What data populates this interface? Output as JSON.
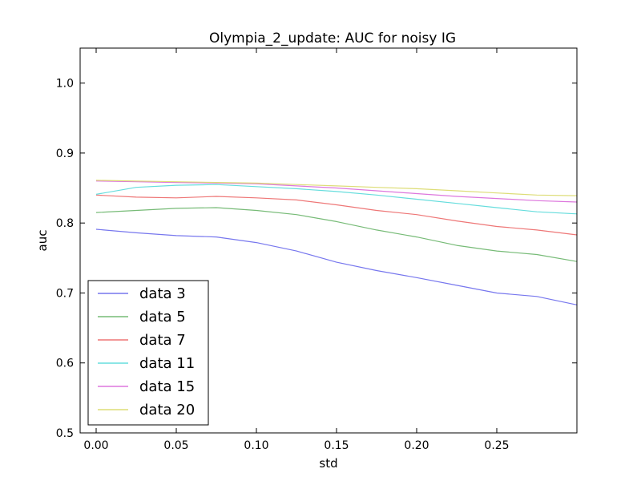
{
  "chart_data": {
    "type": "line",
    "title": "Olympia_2_update: AUC for noisy IG",
    "xlabel": "std",
    "ylabel": "auc",
    "xlim": [
      -0.01,
      0.3
    ],
    "ylim": [
      0.5,
      1.05
    ],
    "xticks": [
      0.0,
      0.05,
      0.1,
      0.15,
      0.2,
      0.25
    ],
    "xtick_labels": [
      "0.00",
      "0.05",
      "0.10",
      "0.15",
      "0.20",
      "0.25"
    ],
    "yticks": [
      0.5,
      0.6,
      0.7,
      0.8,
      0.9,
      1.0
    ],
    "ytick_labels": [
      "0.5",
      "0.6",
      "0.7",
      "0.8",
      "0.9",
      "1.0"
    ],
    "grid": false,
    "legend_position": "lower-left",
    "x": [
      0.0,
      0.025,
      0.05,
      0.075,
      0.1,
      0.125,
      0.15,
      0.175,
      0.2,
      0.225,
      0.25,
      0.275,
      0.3
    ],
    "series": [
      {
        "name": "data 3",
        "color": "#7777ee",
        "values": [
          0.791,
          0.786,
          0.782,
          0.78,
          0.772,
          0.76,
          0.744,
          0.732,
          0.722,
          0.711,
          0.7,
          0.695,
          0.683
        ]
      },
      {
        "name": "data 5",
        "color": "#77bb77",
        "values": [
          0.815,
          0.818,
          0.821,
          0.822,
          0.818,
          0.812,
          0.802,
          0.79,
          0.78,
          0.768,
          0.76,
          0.755,
          0.745
        ]
      },
      {
        "name": "data 7",
        "color": "#ee7777",
        "values": [
          0.84,
          0.837,
          0.836,
          0.838,
          0.836,
          0.833,
          0.826,
          0.818,
          0.812,
          0.803,
          0.795,
          0.79,
          0.783
        ]
      },
      {
        "name": "data 11",
        "color": "#66dddd",
        "values": [
          0.841,
          0.851,
          0.854,
          0.855,
          0.852,
          0.849,
          0.845,
          0.84,
          0.834,
          0.828,
          0.822,
          0.816,
          0.813
        ]
      },
      {
        "name": "data 15",
        "color": "#dd77dd",
        "values": [
          0.86,
          0.859,
          0.858,
          0.857,
          0.856,
          0.853,
          0.85,
          0.846,
          0.842,
          0.838,
          0.835,
          0.832,
          0.83
        ]
      },
      {
        "name": "data 20",
        "color": "#dddd77",
        "values": [
          0.861,
          0.86,
          0.859,
          0.858,
          0.857,
          0.855,
          0.853,
          0.851,
          0.849,
          0.846,
          0.843,
          0.84,
          0.839
        ]
      }
    ]
  }
}
